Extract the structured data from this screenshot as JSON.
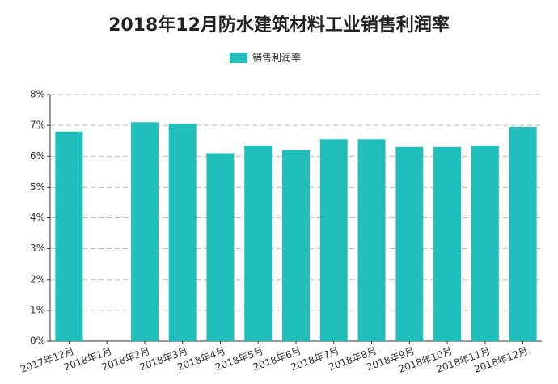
{
  "chart_data": {
    "type": "bar",
    "title": "2018年12月防水建筑材料工业销售利润率",
    "categories": [
      "2017年12月",
      "2018年1月",
      "2018年2月",
      "2018年3月",
      "2018年4月",
      "2018年5月",
      "2018年6月",
      "2018年7月",
      "2018年8月",
      "2018年9月",
      "2018年10月",
      "2018年11月",
      "2018年12月"
    ],
    "series": [
      {
        "name": "销售利润率",
        "color": "#20bfbb",
        "values": [
          6.8,
          null,
          7.1,
          7.05,
          6.1,
          6.35,
          6.2,
          6.55,
          6.55,
          6.3,
          6.3,
          6.35,
          6.95
        ]
      }
    ],
    "ylim": [
      0,
      8
    ],
    "yticks": [
      {
        "value": 0,
        "label": "0%"
      },
      {
        "value": 1,
        "label": "1%"
      },
      {
        "value": 2,
        "label": "2%"
      },
      {
        "value": 3,
        "label": "3%"
      },
      {
        "value": 4,
        "label": "4%"
      },
      {
        "value": 5,
        "label": "5%"
      },
      {
        "value": 6,
        "label": "6%"
      },
      {
        "value": 7,
        "label": "7%"
      },
      {
        "value": 8,
        "label": "8%"
      }
    ],
    "grid": true,
    "legend": "top"
  }
}
